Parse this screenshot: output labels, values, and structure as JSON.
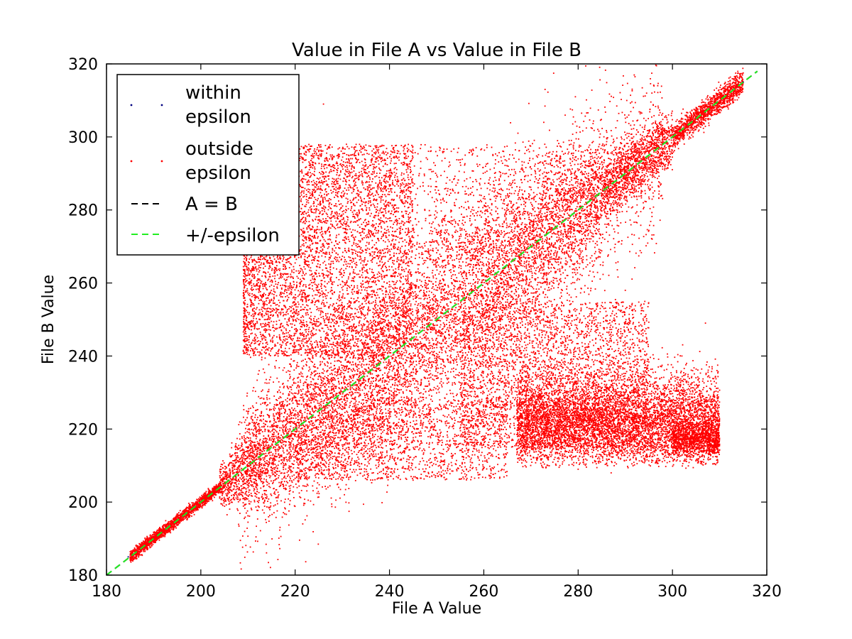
{
  "chart_data": {
    "type": "scatter",
    "title": "Value in File A vs Value in File B",
    "xlabel": "File A Value",
    "ylabel": "File B Value",
    "xlim": [
      180,
      320
    ],
    "ylim": [
      180,
      320
    ],
    "x_ticks": [
      "180",
      "200",
      "220",
      "240",
      "260",
      "280",
      "300",
      "320"
    ],
    "y_ticks": [
      "180",
      "200",
      "220",
      "240",
      "260",
      "280",
      "300",
      "320"
    ],
    "grid": false,
    "legend_position": "top-left",
    "series": [
      {
        "name": "within\nepsilon",
        "kind": "points",
        "color": "#000080",
        "points": [
          [
            184.6,
            185.0
          ],
          [
            230.6,
            230.6
          ],
          [
            315.0,
            315.0
          ]
        ]
      },
      {
        "name": "outside\nepsilon",
        "kind": "points",
        "color": "#ff0000",
        "clusters": [
          {
            "region": "diagonal core",
            "x_range": [
              185,
              315
            ],
            "y_min_at_start": 184,
            "y_max_at_start": 188,
            "y_min_at_end": 310,
            "y_max_at_end": 316
          },
          {
            "region": "upper-left lobe",
            "x_range": [
              209,
              245
            ],
            "y_range": [
              240,
              298
            ]
          },
          {
            "region": "lower-right lobe",
            "x_range": [
              267,
              310
            ],
            "y_range": [
              205,
              240
            ]
          },
          {
            "region": "right blob",
            "x_range": [
              300,
              310
            ],
            "y_range": [
              213,
              222
            ]
          }
        ],
        "sample_points": [
          [
            207,
            210
          ],
          [
            215,
            212
          ],
          [
            220,
            218
          ],
          [
            230,
            206
          ],
          [
            245,
            206
          ],
          [
            250,
            212
          ],
          [
            263,
            215
          ],
          [
            280,
            209
          ],
          [
            287,
            208
          ],
          [
            300,
            212
          ],
          [
            302,
            240
          ],
          [
            308,
            218
          ],
          [
            212,
            290
          ],
          [
            225,
            296
          ],
          [
            231,
            289
          ],
          [
            238,
            295
          ],
          [
            255,
            293
          ],
          [
            262,
            286
          ],
          [
            280,
            294
          ],
          [
            294,
            300
          ],
          [
            307,
            249
          ],
          [
            226,
            309
          ],
          [
            218,
            309
          ],
          [
            297,
            237
          ],
          [
            290,
            258
          ]
        ]
      },
      {
        "name": "A = B",
        "kind": "line",
        "style": "dashed",
        "color": "#000000",
        "x": [
          180,
          318
        ],
        "y": [
          180,
          318
        ]
      },
      {
        "name": "+/-epsilon",
        "kind": "line",
        "style": "dashed",
        "color": "#22ee22",
        "x": [
          180,
          318
        ],
        "y": [
          180,
          318
        ]
      }
    ]
  }
}
